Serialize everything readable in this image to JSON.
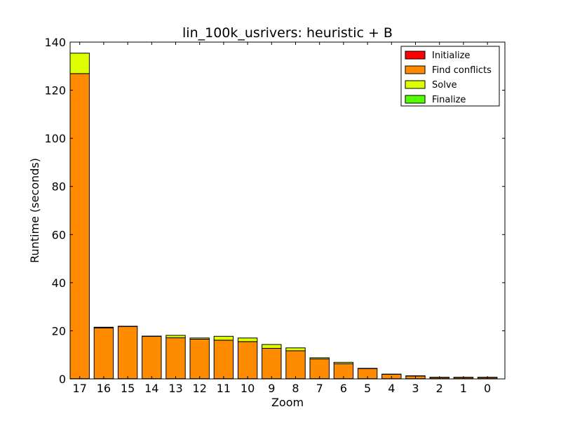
{
  "chart_data": {
    "type": "bar",
    "stacked": true,
    "title": "lin_100k_usrivers: heuristic + B",
    "xlabel": "Zoom",
    "ylabel": "Runtime (seconds)",
    "ylim": [
      0,
      140
    ],
    "yticks": [
      0,
      20,
      40,
      60,
      80,
      100,
      120,
      140
    ],
    "categories": [
      "17",
      "16",
      "15",
      "14",
      "13",
      "12",
      "11",
      "10",
      "9",
      "8",
      "7",
      "6",
      "5",
      "4",
      "3",
      "2",
      "1",
      "0"
    ],
    "series": [
      {
        "name": "Initialize",
        "color": "#ff0000",
        "values": [
          0.1,
          0.1,
          0.1,
          0.1,
          0.1,
          0.1,
          0.1,
          0.1,
          0.1,
          0.1,
          0.1,
          0.1,
          0.1,
          0.1,
          0.1,
          0.1,
          0.1,
          0.1
        ]
      },
      {
        "name": "Find conflicts",
        "color": "#ff8c00",
        "values": [
          126.8,
          21.1,
          21.7,
          17.6,
          17.0,
          16.4,
          16.0,
          15.4,
          12.6,
          11.6,
          8.2,
          6.2,
          4.2,
          1.8,
          1.1,
          0.5,
          0.5,
          0.5
        ]
      },
      {
        "name": "Solve",
        "color": "#ddff00",
        "values": [
          8.5,
          0.3,
          0.1,
          0.1,
          1.0,
          0.5,
          1.6,
          1.5,
          1.6,
          1.2,
          0.5,
          0.6,
          0.1,
          0.1,
          0.1,
          0.1,
          0.1,
          0.1
        ]
      },
      {
        "name": "Finalize",
        "color": "#55ff00",
        "values": [
          0,
          0,
          0,
          0,
          0,
          0,
          0,
          0,
          0,
          0,
          0,
          0,
          0,
          0,
          0,
          0,
          0,
          0
        ]
      }
    ],
    "legend_position": "top-right",
    "grid": false
  }
}
